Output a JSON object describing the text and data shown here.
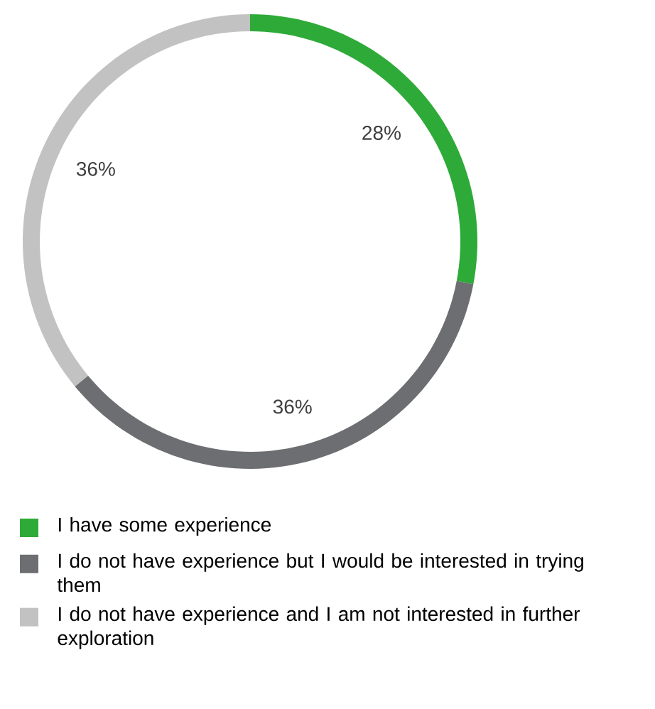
{
  "chart_data": {
    "type": "donut",
    "categories": [
      "I have some experience",
      "I do not have experience but I would be interested in trying them",
      "I do not have experience and I am not interested in further exploration"
    ],
    "values": [
      28,
      36,
      36
    ],
    "value_labels": [
      "28%",
      "36%",
      "36%"
    ],
    "colors": [
      "#2eaa38",
      "#6d6e71",
      "#c1c2c1"
    ],
    "legend": "bottom"
  }
}
